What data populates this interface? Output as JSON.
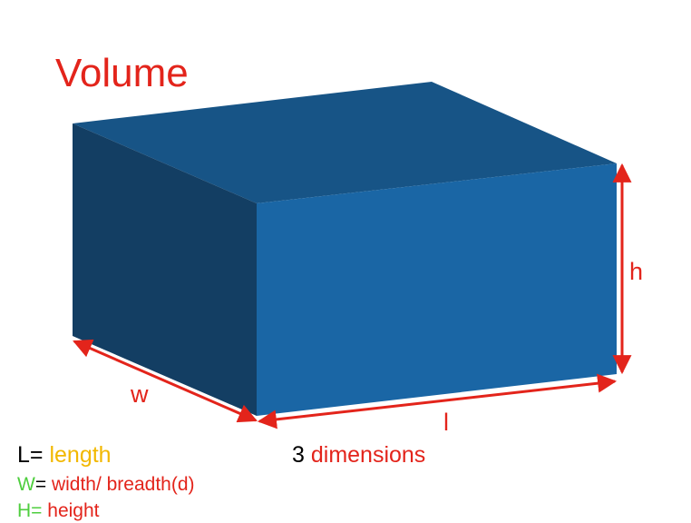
{
  "title": "Volume",
  "dimension_labels": {
    "width": "w",
    "length": "l",
    "height": "h"
  },
  "legend": {
    "length": {
      "key": "L",
      "eq": "=",
      "text": "length"
    },
    "width": {
      "key": "W",
      "eq": "=",
      "text": "width/ breadth(d)"
    },
    "height": {
      "key": "H",
      "eq": "=",
      "text": "height"
    }
  },
  "caption": {
    "number": "3",
    "word": "dimensions"
  },
  "colors": {
    "title_red": "#e3241b",
    "arrow_red": "#e3241b",
    "length_yellow": "#f2b800",
    "legend_green": "#4ece3e",
    "box_top": "#175486",
    "box_left": "#133e63",
    "box_front": "#1a66a5"
  }
}
